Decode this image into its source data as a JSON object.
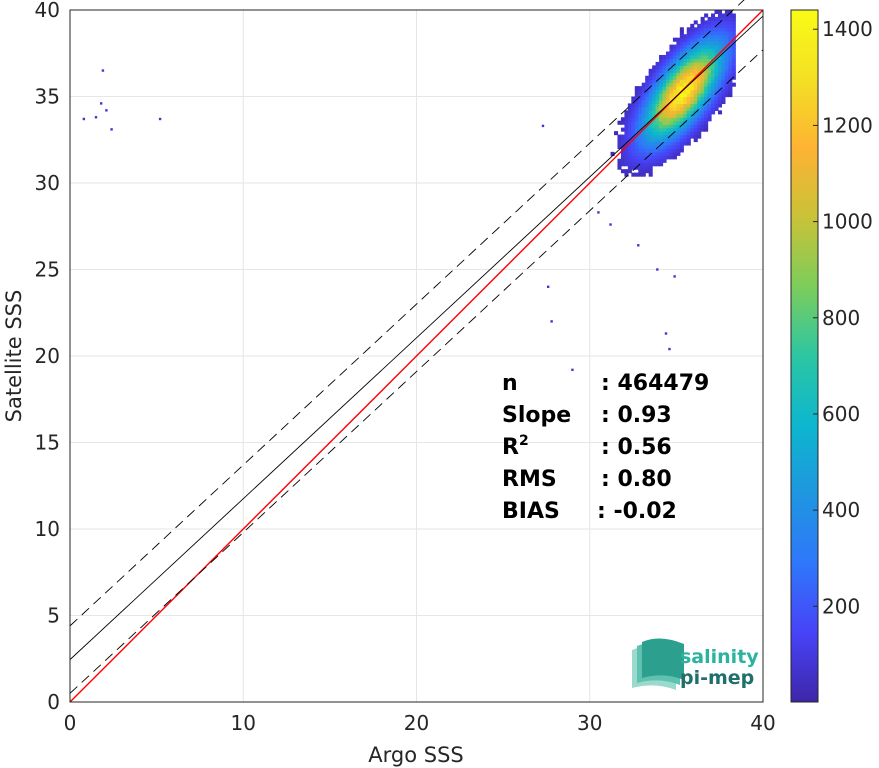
{
  "chart_data": {
    "type": "heatmap",
    "title": "",
    "xlabel": "Argo SSS",
    "ylabel": "Satellite SSS",
    "xlim": [
      0,
      40
    ],
    "ylim": [
      0,
      40
    ],
    "xticks": [
      "0",
      "10",
      "20",
      "30",
      "40"
    ],
    "yticks": [
      "0",
      "5",
      "10",
      "15",
      "20",
      "25",
      "30",
      "35",
      "40"
    ],
    "grid": true,
    "density_center": [
      35.3,
      35.2
    ],
    "density_spread": [
      1.6,
      2.0
    ],
    "density_correlation": 0.7,
    "outliers": [
      [
        1.5,
        33.8
      ],
      [
        1.8,
        34.6
      ],
      [
        2.1,
        34.2
      ],
      [
        2.4,
        33.1
      ],
      [
        1.9,
        36.5
      ],
      [
        5.2,
        33.7
      ],
      [
        0.8,
        33.7
      ],
      [
        27.3,
        33.3
      ],
      [
        27.6,
        24.0
      ],
      [
        27.8,
        22.0
      ],
      [
        29.0,
        19.2
      ],
      [
        34.4,
        21.3
      ],
      [
        34.6,
        20.4
      ],
      [
        33.9,
        25.0
      ],
      [
        34.9,
        24.6
      ],
      [
        32.8,
        26.4
      ],
      [
        31.2,
        27.6
      ],
      [
        30.5,
        28.3
      ]
    ],
    "lines": [
      {
        "name": "identity",
        "slope": 1.0,
        "intercept": 0.0,
        "color": "#ff0000",
        "style": "solid"
      },
      {
        "name": "fit",
        "slope": 0.93,
        "intercept": 2.45,
        "color": "#000000",
        "style": "solid"
      },
      {
        "name": "upper-bound",
        "slope": 0.93,
        "intercept": 4.4,
        "color": "#000000",
        "style": "dashed"
      },
      {
        "name": "lower-bound",
        "slope": 0.93,
        "intercept": 0.5,
        "color": "#000000",
        "style": "dashed"
      }
    ],
    "colorbar": {
      "min": 1,
      "max": 1440,
      "ticks": [
        "200",
        "400",
        "600",
        "800",
        "1000",
        "1200",
        "1400"
      ],
      "colormap": [
        "#3e26a8",
        "#4743f8",
        "#2f77fa",
        "#1f96e0",
        "#0db6ce",
        "#2cc6a2",
        "#7ccd5b",
        "#c9c238",
        "#feb333",
        "#f3e024",
        "#f9fb15"
      ]
    },
    "stats": [
      {
        "label": "n",
        "value": ": 464479"
      },
      {
        "label": "Slope",
        "value": ": 0.93"
      },
      {
        "label": "R",
        "sup": "2",
        "value": ": 0.56"
      },
      {
        "label": "RMS",
        "value": ": 0.80"
      },
      {
        "label": "BIAS",
        "value": ": -0.02"
      }
    ]
  },
  "logo": {
    "line1": "salinity",
    "line2": "pi-mep",
    "color1": "#2bb3a0",
    "color2": "#1f6f6a"
  }
}
